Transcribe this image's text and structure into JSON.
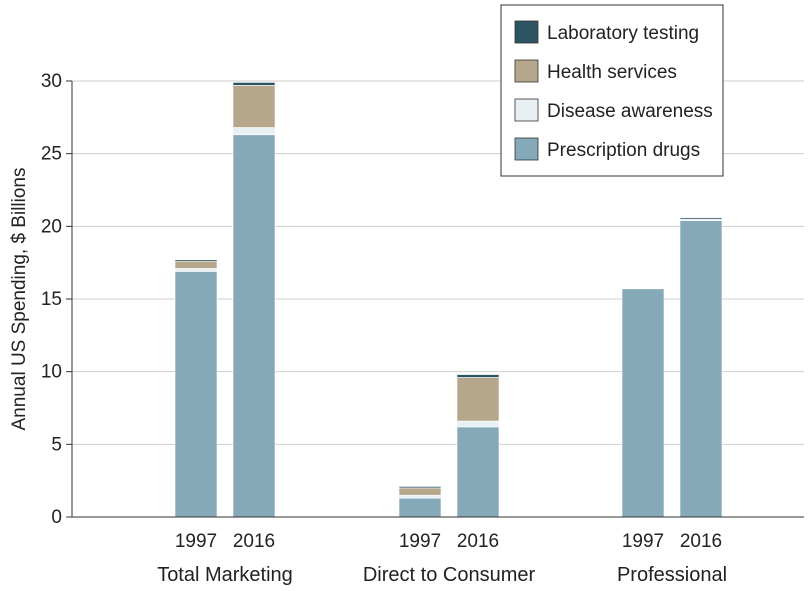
{
  "chart_data": {
    "type": "bar",
    "stacked": true,
    "ylabel": "Annual US Spending, $ Billions",
    "ylim": [
      0,
      30
    ],
    "yticks": [
      0,
      5,
      10,
      15,
      20,
      25,
      30
    ],
    "grid": true,
    "legend_position": "top-right",
    "groups": [
      {
        "label": "Total Marketing",
        "bars": [
          {
            "year": "1997",
            "values": {
              "prescription": 16.9,
              "disease": 0.2,
              "health": 0.5,
              "lab": 0.1
            }
          },
          {
            "year": "2016",
            "values": {
              "prescription": 26.3,
              "disease": 0.5,
              "health": 2.9,
              "lab": 0.2
            }
          }
        ]
      },
      {
        "label": "Direct to Consumer",
        "bars": [
          {
            "year": "1997",
            "values": {
              "prescription": 1.3,
              "disease": 0.2,
              "health": 0.5,
              "lab": 0.1
            }
          },
          {
            "year": "2016",
            "values": {
              "prescription": 6.2,
              "disease": 0.4,
              "health": 3.0,
              "lab": 0.2
            }
          }
        ]
      },
      {
        "label": "Professional",
        "bars": [
          {
            "year": "1997",
            "values": {
              "prescription": 15.7,
              "disease": 0,
              "health": 0,
              "lab": 0
            }
          },
          {
            "year": "2016",
            "values": {
              "prescription": 20.4,
              "disease": 0.1,
              "health": 0,
              "lab": 0.1
            }
          }
        ]
      }
    ],
    "series": [
      {
        "key": "lab",
        "name": "Laboratory testing",
        "color": "#2c5463"
      },
      {
        "key": "health",
        "name": "Health services",
        "color": "#b5a68c"
      },
      {
        "key": "disease",
        "name": "Disease awareness",
        "color": "#e8f0f4"
      },
      {
        "key": "prescription",
        "name": "Prescription drugs",
        "color": "#85a9b9"
      }
    ]
  }
}
